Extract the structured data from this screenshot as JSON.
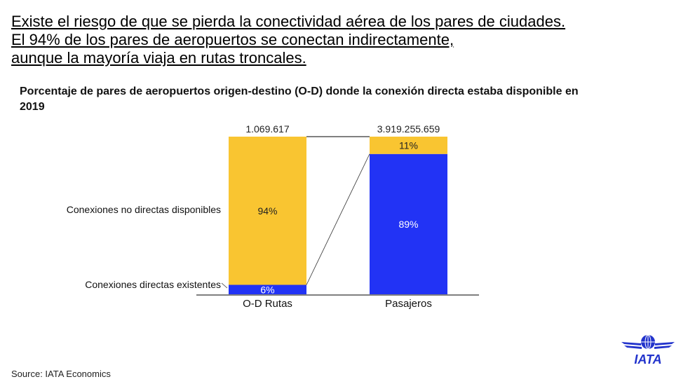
{
  "headline": [
    "Existe el riesgo de que se pierda la conectividad aérea de los pares de ciudades.",
    "El 94% de los pares de aeropuertos se conectan indirectamente,",
    "aunque la mayoría viaja en rutas troncales."
  ],
  "source": "Source: IATA Economics",
  "logo_text": "IATA",
  "colors": {
    "indirect": "#F9C531",
    "direct": "#2233F5"
  },
  "chart_data": {
    "type": "bar",
    "stacked": true,
    "title": "Porcentaje de pares de aeropuertos origen-destino (O-D) donde la conexión directa estaba disponible en 2019",
    "categories": [
      "O-D Rutas",
      "Pasajeros"
    ],
    "totals": [
      "1.069.617",
      "3.919.255.659"
    ],
    "series": [
      {
        "name": "Conexiones directas existentes",
        "values": [
          6,
          89
        ],
        "labels": [
          "6%",
          "89%"
        ]
      },
      {
        "name": "Conexiones no directas disponibles",
        "values": [
          94,
          11
        ],
        "labels": [
          "94%",
          "11%"
        ]
      }
    ],
    "ylim": [
      0,
      100
    ]
  }
}
